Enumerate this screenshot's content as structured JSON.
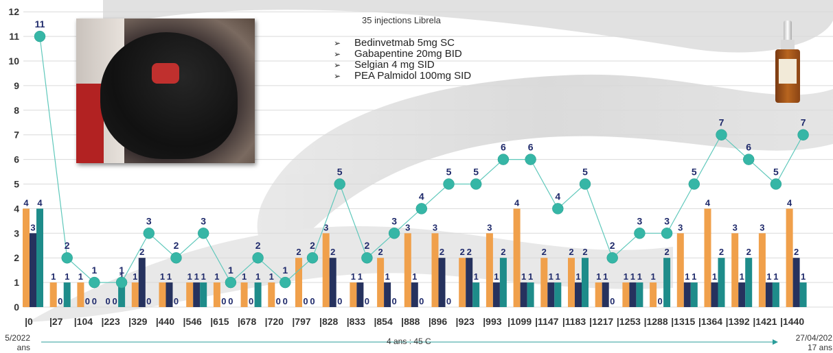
{
  "chart_data": {
    "type": "bar",
    "ylim": [
      0,
      12
    ],
    "yticks": [
      "0",
      "1",
      "2",
      "3",
      "4",
      "5",
      "6",
      "7",
      "8",
      "9",
      "10",
      "11",
      "12"
    ],
    "grid": true,
    "categories": [
      "|0",
      "|27",
      "|104",
      "|223",
      "|329",
      "|440",
      "|546",
      "|615",
      "|678",
      "|720",
      "|797",
      "|828",
      "|833",
      "|854",
      "|888",
      "|896",
      "|923",
      "|993",
      "|1099",
      "|1147",
      "|1183",
      "|1217",
      "|1253",
      "|1288",
      "|1315",
      "|1364",
      "|1392",
      "|1421",
      "|1440"
    ],
    "series": [
      {
        "values": [
          4,
          1,
          1,
          0,
          1,
          1,
          1,
          1,
          1,
          1,
          2,
          3,
          1,
          2,
          3,
          3,
          2,
          3,
          4,
          2,
          2,
          1,
          1,
          1,
          3,
          4,
          3,
          3,
          4
        ]
      },
      {
        "values": [
          3,
          0,
          0,
          0,
          2,
          1,
          1,
          0,
          0,
          0,
          0,
          2,
          1,
          1,
          1,
          2,
          2,
          1,
          1,
          1,
          1,
          1,
          1,
          0,
          1,
          1,
          1,
          1,
          2
        ]
      },
      {
        "values": [
          4,
          1,
          0,
          1,
          0,
          0,
          1,
          0,
          1,
          0,
          0,
          0,
          0,
          0,
          0,
          0,
          1,
          2,
          1,
          1,
          2,
          0,
          1,
          2,
          1,
          2,
          2,
          1,
          1
        ]
      },
      {
        "type": "line",
        "values": [
          11,
          2,
          1,
          1,
          3,
          2,
          3,
          1,
          2,
          1,
          2,
          5,
          2,
          3,
          4,
          5,
          5,
          6,
          6,
          4,
          5,
          2,
          3,
          3,
          5,
          7,
          6,
          5,
          7
        ]
      }
    ],
    "colors": {
      "orange": "#f0a04b",
      "navy": "#26325e",
      "teal": "#1e8c8a",
      "dot": "#36b6a6",
      "label": "#1f2a6b"
    }
  },
  "annotations": {
    "title": "35 injections Librela",
    "drugs": [
      "Bedinvetmab 5mg SC",
      "Gabapentine 20mg BID",
      "Selgian 4 mg SID",
      "PEA Palmidol 100mg SID"
    ]
  },
  "footer": {
    "left_date": "5/2022",
    "left_age": "ans",
    "middle": "4 ans : 45 C",
    "right_date": "27/04/202",
    "right_age": "17 ans"
  }
}
